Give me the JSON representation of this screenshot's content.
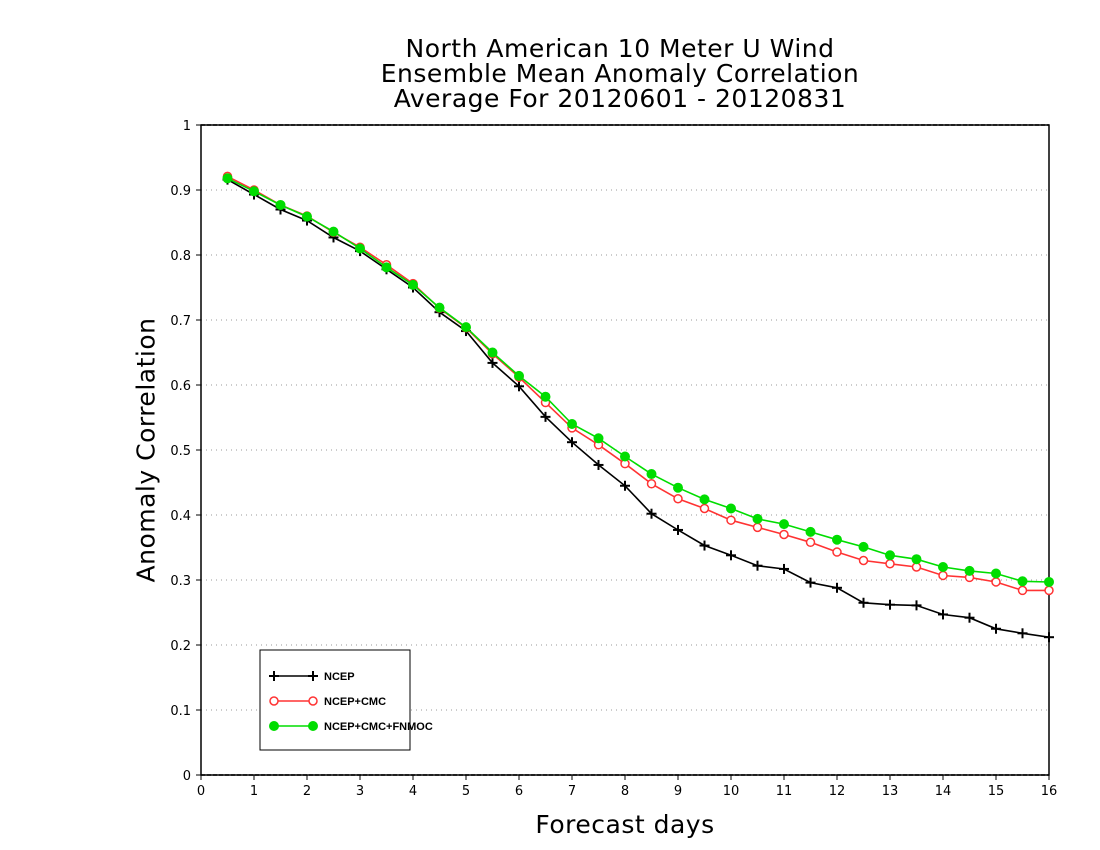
{
  "chart_data": {
    "type": "line",
    "title": [
      "North American 10 Meter U Wind",
      "Ensemble Mean Anomaly Correlation",
      "Average For 20120601 - 20120831"
    ],
    "xlabel": "Forecast days",
    "ylabel": "Anomaly Correlation",
    "xlim": [
      0,
      16
    ],
    "ylim": [
      0,
      1
    ],
    "xticks": [
      0,
      1,
      2,
      3,
      4,
      5,
      6,
      7,
      8,
      9,
      10,
      11,
      12,
      13,
      14,
      15,
      16
    ],
    "yticks": [
      0,
      0.1,
      0.2,
      0.3,
      0.4,
      0.5,
      0.6,
      0.7,
      0.8,
      0.9,
      1
    ],
    "ytick_labels": [
      "0",
      "0.1",
      "0.2",
      "0.3",
      "0.4",
      "0.5",
      "0.6",
      "0.7",
      "0.8",
      "0.9",
      "1"
    ],
    "grid": "horizontal dotted",
    "legend_position": "bottom-left",
    "x": [
      0.5,
      1,
      1.5,
      2,
      2.5,
      3,
      3.5,
      4,
      4.5,
      5,
      5.5,
      6,
      6.5,
      7,
      7.5,
      8,
      8.5,
      9,
      9.5,
      10,
      10.5,
      11,
      11.5,
      12,
      12.5,
      13,
      13.5,
      14,
      14.5,
      15,
      15.5,
      16
    ],
    "series": [
      {
        "name": "NCEP",
        "color": "#000000",
        "marker": "plus",
        "values": [
          0.916,
          0.893,
          0.87,
          0.853,
          0.827,
          0.806,
          0.778,
          0.75,
          0.712,
          0.683,
          0.634,
          0.598,
          0.551,
          0.512,
          0.477,
          0.445,
          0.402,
          0.377,
          0.353,
          0.338,
          0.322,
          0.317,
          0.296,
          0.288,
          0.265,
          0.262,
          0.261,
          0.247,
          0.242,
          0.225,
          0.218,
          0.212
        ]
      },
      {
        "name": "NCEP+CMC",
        "color": "#ff3333",
        "marker": "open-circle",
        "values": [
          0.921,
          0.9,
          0.877,
          0.86,
          0.835,
          0.812,
          0.785,
          0.756,
          0.718,
          0.688,
          0.648,
          0.612,
          0.573,
          0.534,
          0.508,
          0.479,
          0.448,
          0.425,
          0.41,
          0.392,
          0.381,
          0.37,
          0.358,
          0.343,
          0.33,
          0.325,
          0.32,
          0.307,
          0.304,
          0.297,
          0.284,
          0.284
        ]
      },
      {
        "name": "NCEP+CMC+FNMOC",
        "color": "#00dd00",
        "marker": "filled-circle",
        "values": [
          0.918,
          0.898,
          0.877,
          0.859,
          0.836,
          0.81,
          0.781,
          0.754,
          0.719,
          0.689,
          0.65,
          0.614,
          0.582,
          0.54,
          0.518,
          0.49,
          0.463,
          0.442,
          0.424,
          0.41,
          0.394,
          0.386,
          0.374,
          0.362,
          0.351,
          0.338,
          0.332,
          0.32,
          0.314,
          0.31,
          0.298,
          0.297
        ]
      }
    ]
  }
}
